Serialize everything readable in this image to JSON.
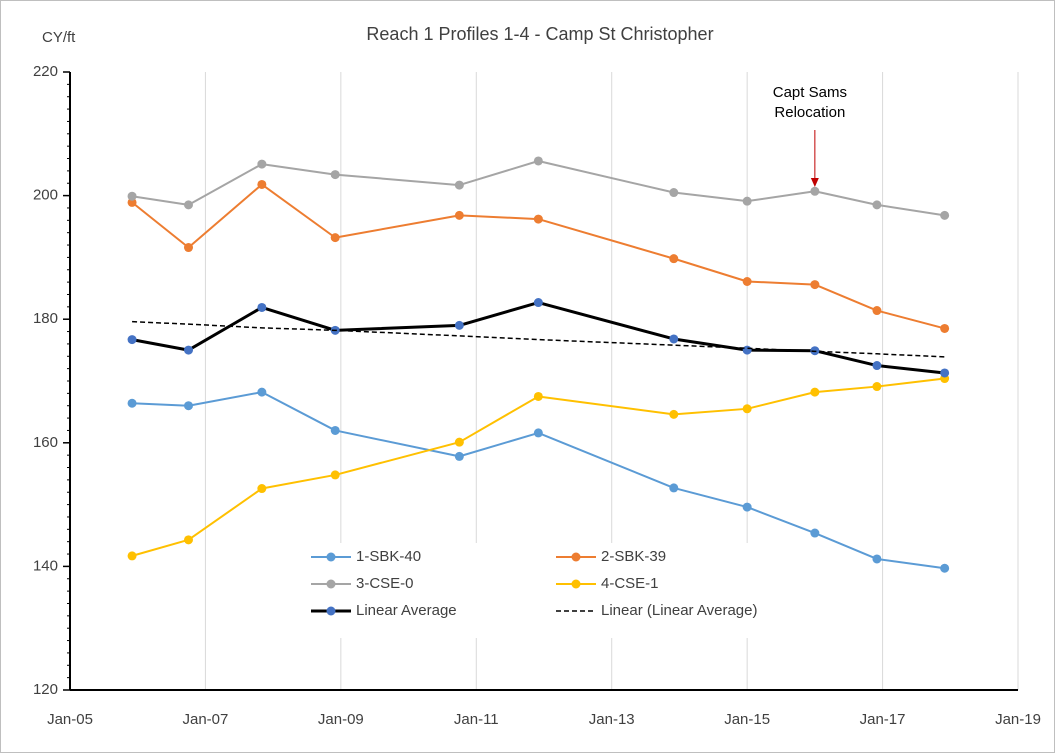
{
  "chart_data": {
    "type": "line",
    "title": "Reach 1 Profiles 1-4 - Camp St Christopher",
    "y_label": "CY/ft",
    "x": [
      "2005-12",
      "2006-10",
      "2007-11",
      "2008-12",
      "2010-10",
      "2011-12",
      "2013-12",
      "2015-01",
      "2016-01",
      "2016-12",
      "2017-12"
    ],
    "series": [
      {
        "name": "1-SBK-40",
        "color": "#5b9bd5",
        "marker_color": "#5b9bd5",
        "width": 2,
        "dashed": false,
        "markers": true,
        "values": [
          166.4,
          166,
          168.2,
          162,
          157.8,
          161.6,
          152.7,
          149.6,
          145.4,
          141.2,
          139.7
        ]
      },
      {
        "name": "2-SBK-39",
        "color": "#ed7d31",
        "marker_color": "#ed7d31",
        "width": 2,
        "dashed": false,
        "markers": true,
        "values": [
          198.9,
          191.6,
          201.8,
          193.2,
          196.8,
          196.2,
          189.8,
          186.1,
          185.6,
          181.4,
          178.5
        ]
      },
      {
        "name": "3-CSE-0",
        "color": "#a5a5a5",
        "marker_color": "#a5a5a5",
        "width": 2,
        "dashed": false,
        "markers": true,
        "values": [
          199.9,
          198.5,
          205.1,
          203.4,
          201.7,
          205.6,
          200.5,
          199.1,
          200.7,
          198.5,
          196.8
        ]
      },
      {
        "name": "4-CSE-1",
        "color": "#ffc000",
        "marker_color": "#ffc000",
        "width": 2,
        "dashed": false,
        "markers": true,
        "values": [
          141.7,
          144.3,
          152.6,
          154.8,
          160.1,
          167.5,
          164.6,
          165.5,
          168.2,
          169.1,
          170.4
        ]
      },
      {
        "name": "Linear Average",
        "color": "#000000",
        "marker_color": "#4472c4",
        "width": 3,
        "dashed": false,
        "markers": true,
        "values": [
          176.7,
          175,
          181.9,
          178.2,
          179,
          182.7,
          176.8,
          175,
          174.9,
          172.5,
          171.3
        ]
      },
      {
        "name": "Linear (Linear Average)",
        "color": "#000000",
        "marker_color": "#000000",
        "width": 1.5,
        "dashed": true,
        "markers": false,
        "values": [
          179.6,
          179.2,
          178.6,
          178.2,
          177.3,
          176.7,
          175.8,
          175.3,
          174.8,
          174.4,
          173.9
        ]
      }
    ],
    "xlim": [
      "2005-01",
      "2019-01"
    ],
    "xticks": [
      {
        "value": "2005-01",
        "label": "Jan-05"
      },
      {
        "value": "2007-01",
        "label": "Jan-07"
      },
      {
        "value": "2009-01",
        "label": "Jan-09"
      },
      {
        "value": "2011-01",
        "label": "Jan-11"
      },
      {
        "value": "2013-01",
        "label": "Jan-13"
      },
      {
        "value": "2015-01",
        "label": "Jan-15"
      },
      {
        "value": "2017-01",
        "label": "Jan-17"
      },
      {
        "value": "2019-01",
        "label": "Jan-19"
      }
    ],
    "ylim": [
      120,
      220
    ],
    "yticks": [
      120,
      140,
      160,
      180,
      200,
      220
    ],
    "grid": "x",
    "legend": "lower center",
    "annotations": [
      {
        "lines": [
          "Capt Sams",
          "Relocation"
        ],
        "x": "2016-01"
      }
    ]
  }
}
